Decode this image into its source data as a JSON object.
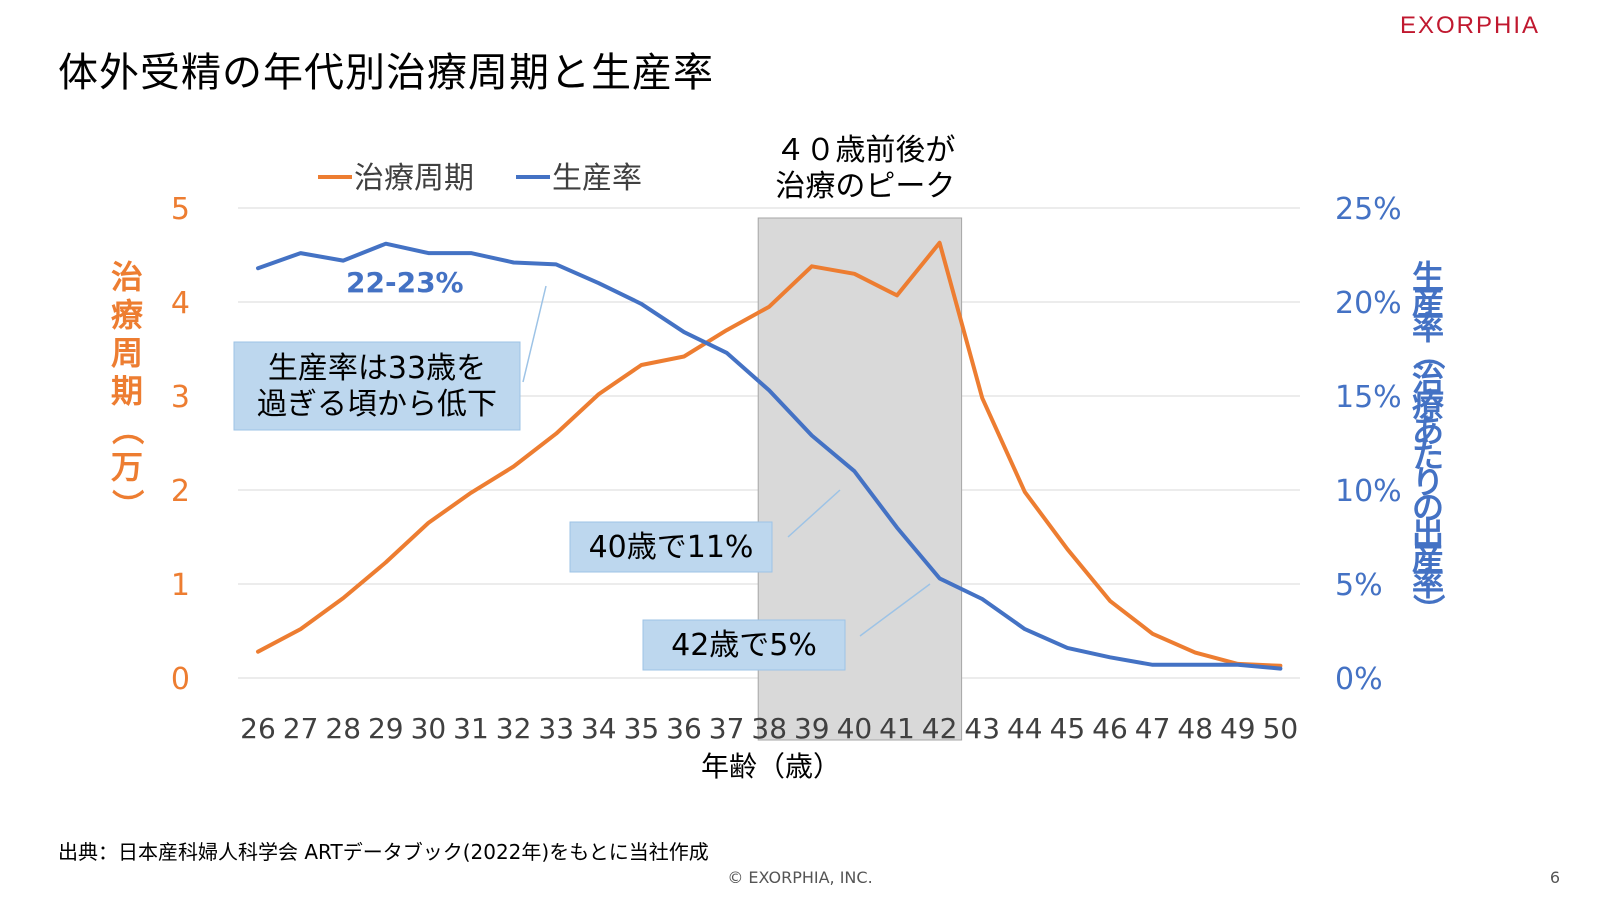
{
  "page": {
    "title": "体外受精の年代別治療周期と生産率",
    "logo": "EXORPHIA",
    "source": "出典：日本産科婦人科学会 ARTデータブック(2022年)をもとに当社作成",
    "copyright": "© EXORPHIA, INC.",
    "page_number": "6"
  },
  "colors": {
    "cycles": "#ed7d31",
    "birth_rate": "#4472c4",
    "highlight_fill": "#d9d9d9",
    "callout_fill": "#bdd7ee",
    "logo": "#c0182f"
  },
  "chart_data": {
    "type": "line",
    "xlabel": "年齢（歳）",
    "categories": [
      "26",
      "27",
      "28",
      "29",
      "30",
      "31",
      "32",
      "33",
      "34",
      "35",
      "36",
      "37",
      "38",
      "39",
      "40",
      "41",
      "42",
      "43",
      "44",
      "45",
      "46",
      "47",
      "48",
      "49",
      "50"
    ],
    "y_left": {
      "label": "治療周期（万）",
      "ylim": [
        0,
        5
      ],
      "ticks": [
        "0",
        "1",
        "2",
        "3",
        "4",
        "5"
      ]
    },
    "y_right": {
      "label": "生産率（治療あたりの出産率）",
      "ylim": [
        0,
        25
      ],
      "ticks": [
        "0%",
        "5%",
        "10%",
        "15%",
        "20%",
        "25%"
      ]
    },
    "series": [
      {
        "name": "治療周期",
        "axis": "left",
        "values": [
          0.28,
          0.52,
          0.85,
          1.23,
          1.65,
          1.97,
          2.25,
          2.6,
          3.02,
          3.33,
          3.42,
          3.7,
          3.95,
          4.38,
          4.3,
          4.07,
          4.63,
          2.98,
          1.98,
          1.37,
          0.82,
          0.47,
          0.27,
          0.15,
          0.13
        ]
      },
      {
        "name": "生産率",
        "axis": "right",
        "values": [
          21.8,
          22.6,
          22.2,
          23.1,
          22.6,
          22.6,
          22.1,
          22.0,
          21.0,
          19.9,
          18.4,
          17.3,
          15.3,
          12.9,
          11.0,
          8.0,
          5.3,
          4.2,
          2.6,
          1.6,
          1.1,
          0.7,
          0.7,
          0.7,
          0.5
        ]
      }
    ],
    "highlight": {
      "from": "38",
      "to": "42",
      "label_line1": "４０歳前後が",
      "label_line2": "治療のピーク"
    },
    "annotations": {
      "plateau": "22-23%",
      "decline_line1": "生産率は33歳を",
      "decline_line2": "過ぎる頃から低下",
      "age40": "40歳で11%",
      "age42": "42歳で5%"
    },
    "legend_position": "top-left",
    "grid": true
  }
}
